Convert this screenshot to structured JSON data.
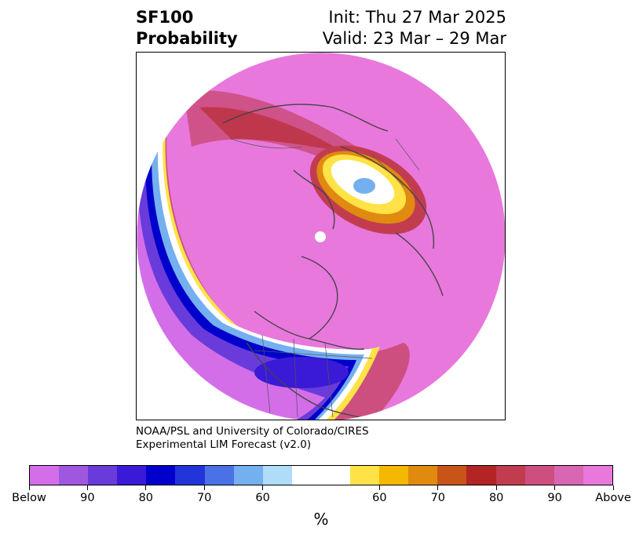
{
  "title": {
    "left_line1": "SF100",
    "left_line2": "Probability",
    "right_line1": "Init: Thu 27 Mar 2025",
    "right_line2": "Valid: 23 Mar – 29 Mar"
  },
  "credit": {
    "line1": "NOAA/PSL and University of Colorado/CIRES",
    "line2": "Experimental LIM Forecast (v2.0)"
  },
  "colorbar": {
    "colors": [
      "#d36ee8",
      "#a057e0",
      "#6a3bdb",
      "#3a1ad6",
      "#0000cd",
      "#2235d8",
      "#4a72e6",
      "#74aff0",
      "#aedcf9",
      "#ffffff",
      "#ffffff",
      "#ffe246",
      "#f4b800",
      "#e08a10",
      "#c85418",
      "#b42424",
      "#c23c50",
      "#cc4f80",
      "#d966b2",
      "#e878dc"
    ],
    "tick_labels": [
      "Below",
      "90",
      "80",
      "70",
      "60",
      "60",
      "70",
      "80",
      "90",
      "Above"
    ],
    "unit": "%"
  },
  "map": {
    "description_colors": {
      "background": "#ffffff",
      "above_magenta": "#e878dc",
      "below_purple": "#d36ee8",
      "coastline": "#444444"
    }
  }
}
